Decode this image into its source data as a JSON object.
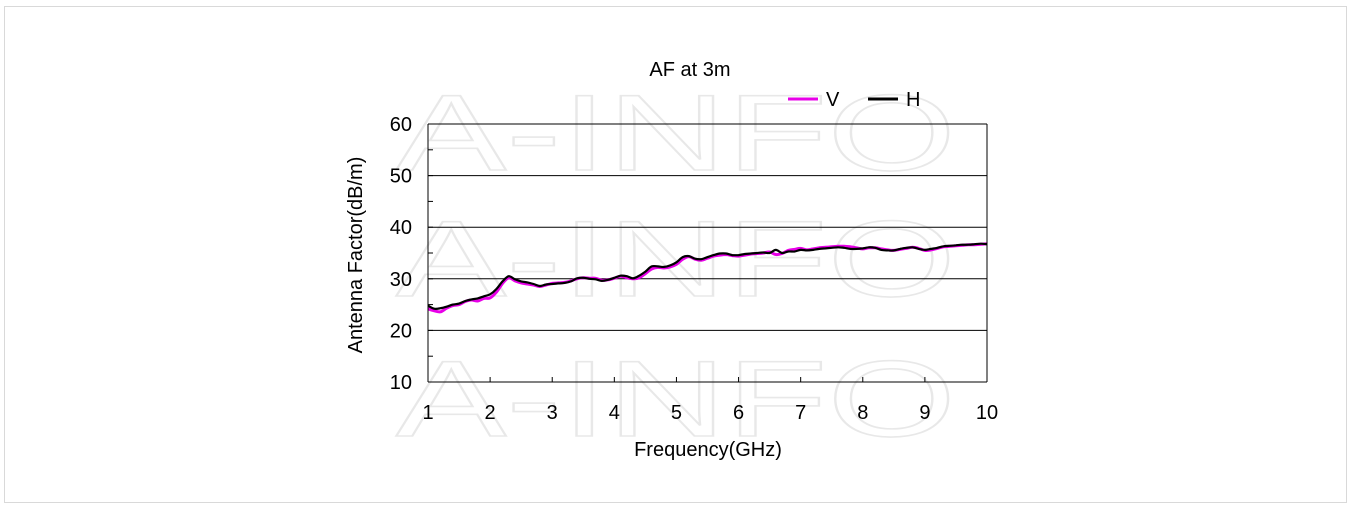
{
  "watermark": {
    "text": "A-INFO"
  },
  "chart_data": {
    "type": "line",
    "title": "AF at 3m",
    "xlabel": "Frequency(GHz)",
    "ylabel": "Antenna Factor(dB/m)",
    "xlim": [
      1,
      10
    ],
    "ylim": [
      10,
      60
    ],
    "xticks": [
      "1",
      "2",
      "3",
      "4",
      "5",
      "6",
      "7",
      "8",
      "9",
      "10"
    ],
    "yticks": [
      "10",
      "20",
      "30",
      "40",
      "50",
      "60"
    ],
    "grid": "horizontal",
    "legend_position": "top-right",
    "series": [
      {
        "name": "V",
        "color": "#e800e8",
        "x": [
          1.0,
          1.1,
          1.2,
          1.3,
          1.4,
          1.5,
          1.6,
          1.7,
          1.8,
          1.9,
          2.0,
          2.1,
          2.2,
          2.3,
          2.4,
          2.5,
          2.6,
          2.7,
          2.8,
          2.9,
          3.0,
          3.1,
          3.2,
          3.3,
          3.4,
          3.5,
          3.6,
          3.7,
          3.8,
          3.9,
          4.0,
          4.1,
          4.2,
          4.3,
          4.4,
          4.5,
          4.6,
          4.7,
          4.8,
          4.9,
          5.0,
          5.1,
          5.2,
          5.3,
          5.4,
          5.5,
          5.6,
          5.7,
          5.8,
          5.9,
          6.0,
          6.1,
          6.2,
          6.3,
          6.4,
          6.5,
          6.6,
          6.7,
          6.8,
          6.9,
          7.0,
          7.1,
          7.2,
          7.3,
          7.4,
          7.5,
          7.6,
          7.7,
          7.8,
          7.9,
          8.0,
          8.1,
          8.2,
          8.3,
          8.4,
          8.5,
          8.6,
          8.7,
          8.8,
          8.9,
          9.0,
          9.1,
          9.2,
          9.3,
          9.4,
          9.5,
          9.6,
          9.7,
          9.8,
          9.9,
          10.0
        ],
        "y": [
          24.2,
          23.8,
          23.6,
          24.3,
          24.8,
          25.0,
          25.6,
          25.9,
          25.7,
          26.2,
          26.3,
          27.4,
          29.1,
          30.2,
          29.6,
          29.2,
          29.0,
          28.8,
          28.5,
          28.8,
          29.1,
          29.2,
          29.3,
          29.6,
          30.0,
          30.2,
          30.1,
          30.1,
          29.7,
          29.8,
          30.1,
          30.5,
          30.2,
          30.0,
          30.2,
          31.0,
          31.9,
          32.2,
          32.1,
          32.3,
          32.8,
          33.8,
          34.3,
          33.8,
          33.6,
          34.0,
          34.4,
          34.6,
          34.7,
          34.5,
          34.4,
          34.6,
          34.8,
          34.9,
          35.0,
          35.2,
          34.7,
          34.9,
          35.5,
          35.7,
          35.9,
          35.6,
          35.8,
          36.0,
          36.1,
          36.2,
          36.3,
          36.3,
          36.2,
          36.0,
          35.8,
          36.0,
          36.0,
          35.8,
          35.6,
          35.5,
          35.7,
          35.9,
          36.1,
          35.9,
          35.5,
          35.6,
          35.9,
          36.2,
          36.3,
          36.4,
          36.5,
          36.6,
          36.6,
          36.7,
          36.8
        ]
      },
      {
        "name": "H",
        "color": "#000000",
        "x": [
          1.0,
          1.1,
          1.2,
          1.3,
          1.4,
          1.5,
          1.6,
          1.7,
          1.8,
          1.9,
          2.0,
          2.1,
          2.2,
          2.3,
          2.4,
          2.5,
          2.6,
          2.7,
          2.8,
          2.9,
          3.0,
          3.1,
          3.2,
          3.3,
          3.4,
          3.5,
          3.6,
          3.7,
          3.8,
          3.9,
          4.0,
          4.1,
          4.2,
          4.3,
          4.4,
          4.5,
          4.6,
          4.7,
          4.8,
          4.9,
          5.0,
          5.1,
          5.2,
          5.3,
          5.4,
          5.5,
          5.6,
          5.7,
          5.8,
          5.9,
          6.0,
          6.1,
          6.2,
          6.3,
          6.4,
          6.5,
          6.6,
          6.7,
          6.8,
          6.9,
          7.0,
          7.1,
          7.2,
          7.3,
          7.4,
          7.5,
          7.6,
          7.7,
          7.8,
          7.9,
          8.0,
          8.1,
          8.2,
          8.3,
          8.4,
          8.5,
          8.6,
          8.7,
          8.8,
          8.9,
          9.0,
          9.1,
          9.2,
          9.3,
          9.4,
          9.5,
          9.6,
          9.7,
          9.8,
          9.9,
          10.0
        ],
        "y": [
          24.8,
          24.2,
          24.3,
          24.6,
          25.0,
          25.2,
          25.7,
          26.0,
          26.2,
          26.6,
          27.0,
          28.0,
          29.5,
          30.5,
          29.9,
          29.5,
          29.3,
          29.0,
          28.6,
          28.9,
          29.0,
          29.1,
          29.2,
          29.5,
          30.1,
          30.2,
          30.0,
          29.9,
          29.6,
          29.8,
          30.2,
          30.6,
          30.5,
          30.1,
          30.6,
          31.4,
          32.4,
          32.4,
          32.3,
          32.6,
          33.2,
          34.2,
          34.4,
          33.9,
          33.8,
          34.2,
          34.6,
          34.9,
          34.9,
          34.6,
          34.6,
          34.8,
          34.9,
          35.0,
          35.1,
          35.0,
          35.6,
          35.0,
          35.3,
          35.3,
          35.6,
          35.5,
          35.6,
          35.8,
          35.9,
          36.0,
          36.1,
          36.0,
          35.8,
          35.8,
          35.9,
          36.1,
          36.0,
          35.6,
          35.5,
          35.5,
          35.8,
          36.0,
          36.1,
          35.8,
          35.6,
          35.8,
          36.0,
          36.3,
          36.4,
          36.5,
          36.6,
          36.6,
          36.7,
          36.8,
          36.7
        ]
      }
    ]
  }
}
